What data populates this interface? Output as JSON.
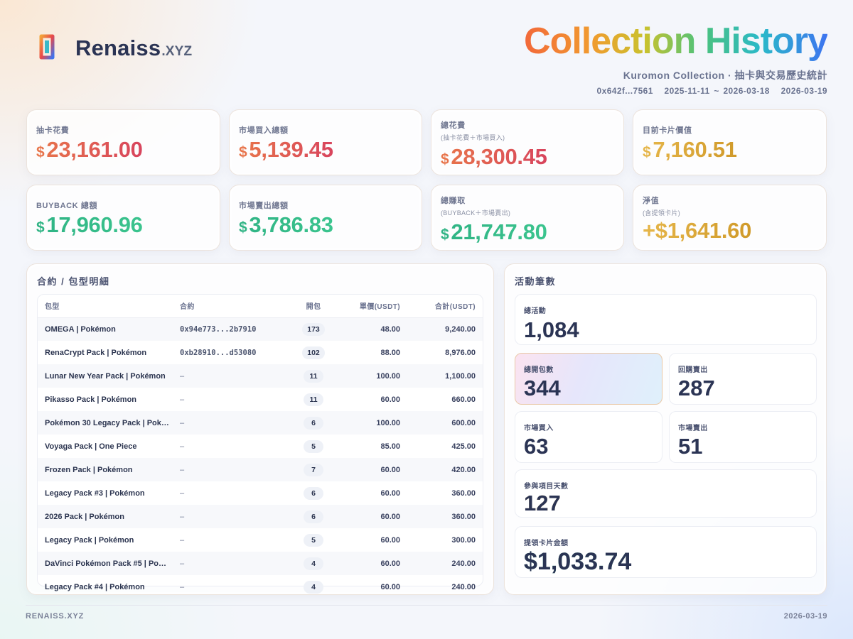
{
  "header": {
    "brand": "Renaiss",
    "brand_suffix": ".XYZ",
    "title": "Collection History",
    "subtitle": "Kuromon Collection · 抽卡與交易歷史統計",
    "wallet": "0x642f...7561",
    "date_range": "2025-11-11 ~ 2026-03-18",
    "report_date": "2026-03-19"
  },
  "stats": {
    "draw_cost": {
      "label": "抽卡花費",
      "currency": "$",
      "value": "23,161.00"
    },
    "market_buy": {
      "label": "市場買入總額",
      "currency": "$",
      "value": "5,139.45"
    },
    "total_cost": {
      "label": "總花費",
      "sub": "(抽卡花費＋市場買入)",
      "currency": "$",
      "value": "28,300.45"
    },
    "card_value": {
      "label": "目前卡片價值",
      "currency": "$",
      "value": "7,160.51"
    },
    "buyback": {
      "label": "BUYBACK 總額",
      "currency": "$",
      "value": "17,960.96"
    },
    "market_sell": {
      "label": "市場賣出總額",
      "currency": "$",
      "value": "3,786.83"
    },
    "total_earned": {
      "label": "總賺取",
      "sub": "(BUYBACK＋市場賣出)",
      "currency": "$",
      "value": "21,747.80"
    },
    "net_value": {
      "label": "淨值",
      "sub": "(含提領卡片)",
      "value": "+$1,641.60"
    }
  },
  "packs_panel": {
    "title": "合約 / 包型明細",
    "columns": [
      "包型",
      "合約",
      "開包",
      "單價(USDT)",
      "合計(USDT)"
    ],
    "rows": [
      {
        "pack": "OMEGA | Pokémon",
        "contract": "0x94e773...2b7910",
        "opened": "173",
        "price": "48.00",
        "total": "9,240.00"
      },
      {
        "pack": "RenaCrypt Pack | Pokémon",
        "contract": "0xb28910...d53080",
        "opened": "102",
        "price": "88.00",
        "total": "8,976.00"
      },
      {
        "pack": "Lunar New Year Pack | Pokémon",
        "contract": "–",
        "opened": "11",
        "price": "100.00",
        "total": "1,100.00"
      },
      {
        "pack": "Pikasso Pack | Pokémon",
        "contract": "–",
        "opened": "11",
        "price": "60.00",
        "total": "660.00"
      },
      {
        "pack": "Pokémon 30 Legacy Pack | Pok…",
        "contract": "–",
        "opened": "6",
        "price": "100.00",
        "total": "600.00"
      },
      {
        "pack": "Voyaga Pack | One Piece",
        "contract": "–",
        "opened": "5",
        "price": "85.00",
        "total": "425.00"
      },
      {
        "pack": "Frozen Pack | Pokémon",
        "contract": "–",
        "opened": "7",
        "price": "60.00",
        "total": "420.00"
      },
      {
        "pack": "Legacy Pack #3 | Pokémon",
        "contract": "–",
        "opened": "6",
        "price": "60.00",
        "total": "360.00"
      },
      {
        "pack": "2026 Pack | Pokémon",
        "contract": "–",
        "opened": "6",
        "price": "60.00",
        "total": "360.00"
      },
      {
        "pack": "Legacy Pack | Pokémon",
        "contract": "–",
        "opened": "5",
        "price": "60.00",
        "total": "300.00"
      },
      {
        "pack": "DaVinci Pokémon Pack #5 | Po…",
        "contract": "–",
        "opened": "4",
        "price": "60.00",
        "total": "240.00"
      },
      {
        "pack": "Legacy Pack #4 | Pokémon",
        "contract": "–",
        "opened": "4",
        "price": "60.00",
        "total": "240.00"
      }
    ]
  },
  "activity": {
    "title": "活動筆數",
    "total": {
      "label": "總活動",
      "value": "1,084"
    },
    "opened": {
      "label": "總開包數",
      "value": "344"
    },
    "buyback_sold": {
      "label": "回購賣出",
      "value": "287"
    },
    "market_buy": {
      "label": "市場買入",
      "value": "63"
    },
    "market_sell": {
      "label": "市場賣出",
      "value": "51"
    },
    "days": {
      "label": "參與項目天數",
      "value": "127"
    },
    "withdrawn": {
      "label": "提領卡片金額",
      "value": "$1,033.74"
    }
  },
  "footer": {
    "left": "RENAISS.XYZ",
    "right": "2026-03-19"
  }
}
